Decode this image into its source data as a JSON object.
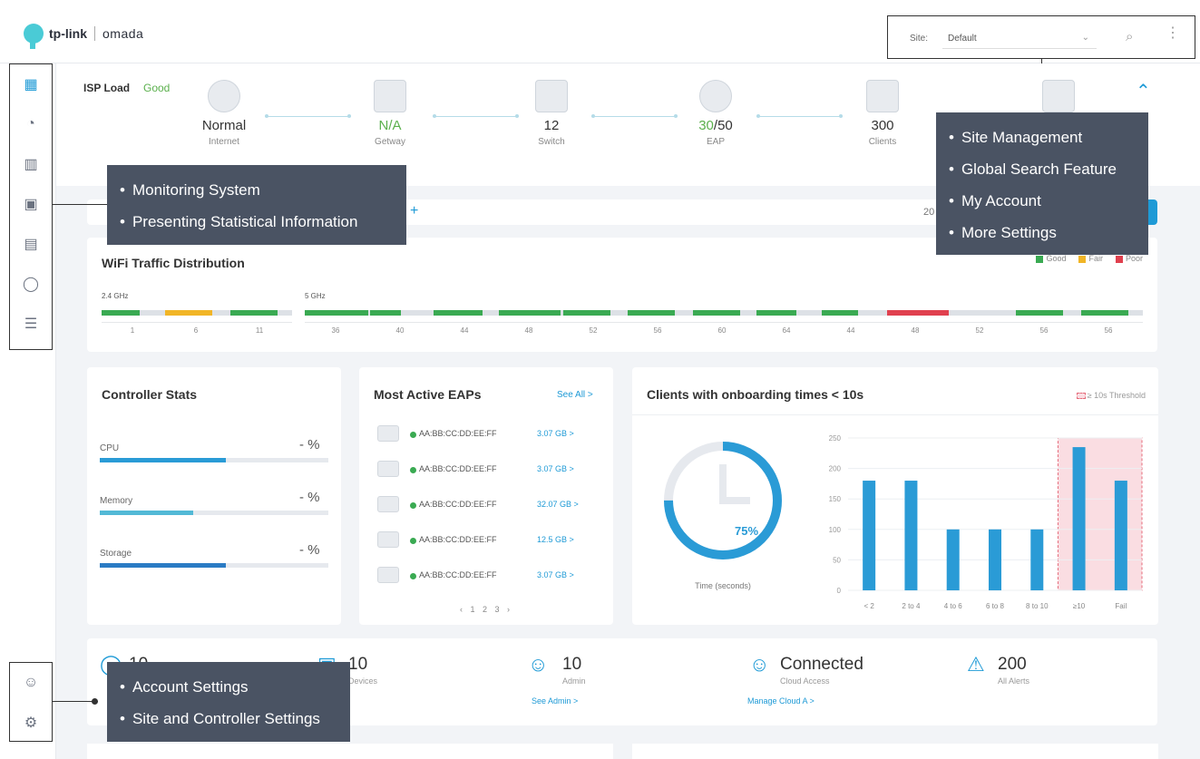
{
  "brand": {
    "logo_tp": "tp-link",
    "logo_product": "omada"
  },
  "header": {
    "site_label": "Site:",
    "site_value": "Default",
    "icons": [
      "search-icon",
      "more-icon"
    ]
  },
  "sidebar": {
    "items": [
      {
        "icon": "dashboard-icon",
        "glyph": "⋮⋮"
      },
      {
        "icon": "statistics-icon",
        "glyph": "◔"
      },
      {
        "icon": "map-icon",
        "glyph": "▥"
      },
      {
        "icon": "devices-icon",
        "glyph": "▣"
      },
      {
        "icon": "clients-icon",
        "glyph": "▤"
      },
      {
        "icon": "insights-icon",
        "glyph": "◯"
      },
      {
        "icon": "logs-icon",
        "glyph": "☰"
      }
    ],
    "bottom": [
      {
        "icon": "account-icon",
        "glyph": "☺"
      },
      {
        "icon": "settings-icon",
        "glyph": "⚙"
      }
    ]
  },
  "isp": {
    "label": "ISP Load",
    "status": "Good",
    "nodes": [
      {
        "value": "Normal",
        "caption": "Internet"
      },
      {
        "value": "N/A",
        "caption": "Getway"
      },
      {
        "value": "12",
        "caption": "Switch"
      },
      {
        "value_green": "30",
        "value_rest": "/50",
        "caption": "EAP"
      },
      {
        "value": "300",
        "caption": "Clients"
      }
    ]
  },
  "filter": {
    "year_text": "20"
  },
  "wifi": {
    "title": "WiFi Traffic Distribution",
    "legend": [
      {
        "label": "Good",
        "color": "#3aaa52"
      },
      {
        "label": "Fair",
        "color": "#f1b526"
      },
      {
        "label": "Poor",
        "color": "#e0404e"
      }
    ],
    "band_24_label": "2.4 GHz",
    "band_5_label": "5 GHz",
    "ticks_24": [
      "1",
      "6",
      "11"
    ],
    "ticks_5": [
      "36",
      "40",
      "44",
      "48",
      "52",
      "56",
      "60",
      "64",
      "44",
      "48",
      "52",
      "56",
      "56"
    ]
  },
  "controller": {
    "title": "Controller Stats",
    "stats": [
      {
        "label": "CPU",
        "value": "- %",
        "level": 0.55,
        "color": "#2a9bd6"
      },
      {
        "label": "Memory",
        "value": "- %",
        "level": 0.41,
        "color": "#53b9d6"
      },
      {
        "label": "Storage",
        "value": "- %",
        "level": 0.55,
        "color": "#2a7bc4"
      }
    ]
  },
  "eaps": {
    "title": "Most Active EAPs",
    "see_all": "See All >",
    "rows": [
      {
        "mac": "AA:BB:CC:DD:EE:FF",
        "size": "3.07 GB >"
      },
      {
        "mac": "AA:BB:CC:DD:EE:FF",
        "size": "3.07 GB >"
      },
      {
        "mac": "AA:BB:CC:DD:EE:FF",
        "size": "32.07 GB >"
      },
      {
        "mac": "AA:BB:CC:DD:EE:FF",
        "size": "12.5 GB >"
      },
      {
        "mac": "AA:BB:CC:DD:EE:FF",
        "size": "3.07 GB >"
      }
    ],
    "pager": "‹ 1 2 3 ›"
  },
  "clients": {
    "title": "Clients with onboarding times < 10s",
    "threshold_label": "≥ 10s Threshold",
    "percent": "75%",
    "percent_value": 0.75,
    "time_caption": "Time (seconds)"
  },
  "chart_data": {
    "type": "bar",
    "categories": [
      "< 2",
      "2 to 4",
      "4 to 6",
      "6 to 8",
      "8 to 10",
      "≥10",
      "Fail"
    ],
    "values": [
      180,
      180,
      100,
      100,
      100,
      235,
      180
    ],
    "ylim": [
      0,
      250
    ],
    "yticks": [
      "0",
      "50",
      "100",
      "150",
      "200",
      "250"
    ],
    "threshold_categories": [
      "≥10",
      "Fail"
    ],
    "bar_color": "#2a9bd6"
  },
  "bottom": {
    "stats": [
      {
        "big": "10",
        "small": "",
        "link": ""
      },
      {
        "big": "10",
        "small": "Devices",
        "link": ""
      },
      {
        "big": "10",
        "small": "Admin",
        "link": "See Admin >"
      },
      {
        "big": "Connected",
        "small": "Cloud Access",
        "link": "Manage Cloud A >"
      },
      {
        "big": "200",
        "small": "All Alerts",
        "link": ""
      }
    ]
  },
  "callouts": {
    "monitor": [
      "Monitoring System",
      "Presenting Statistical Information"
    ],
    "site": [
      "Site Management",
      "Global Search Feature",
      "My Account",
      "More Settings"
    ],
    "account": [
      "Account Settings",
      "Site and Controller Settings"
    ]
  }
}
